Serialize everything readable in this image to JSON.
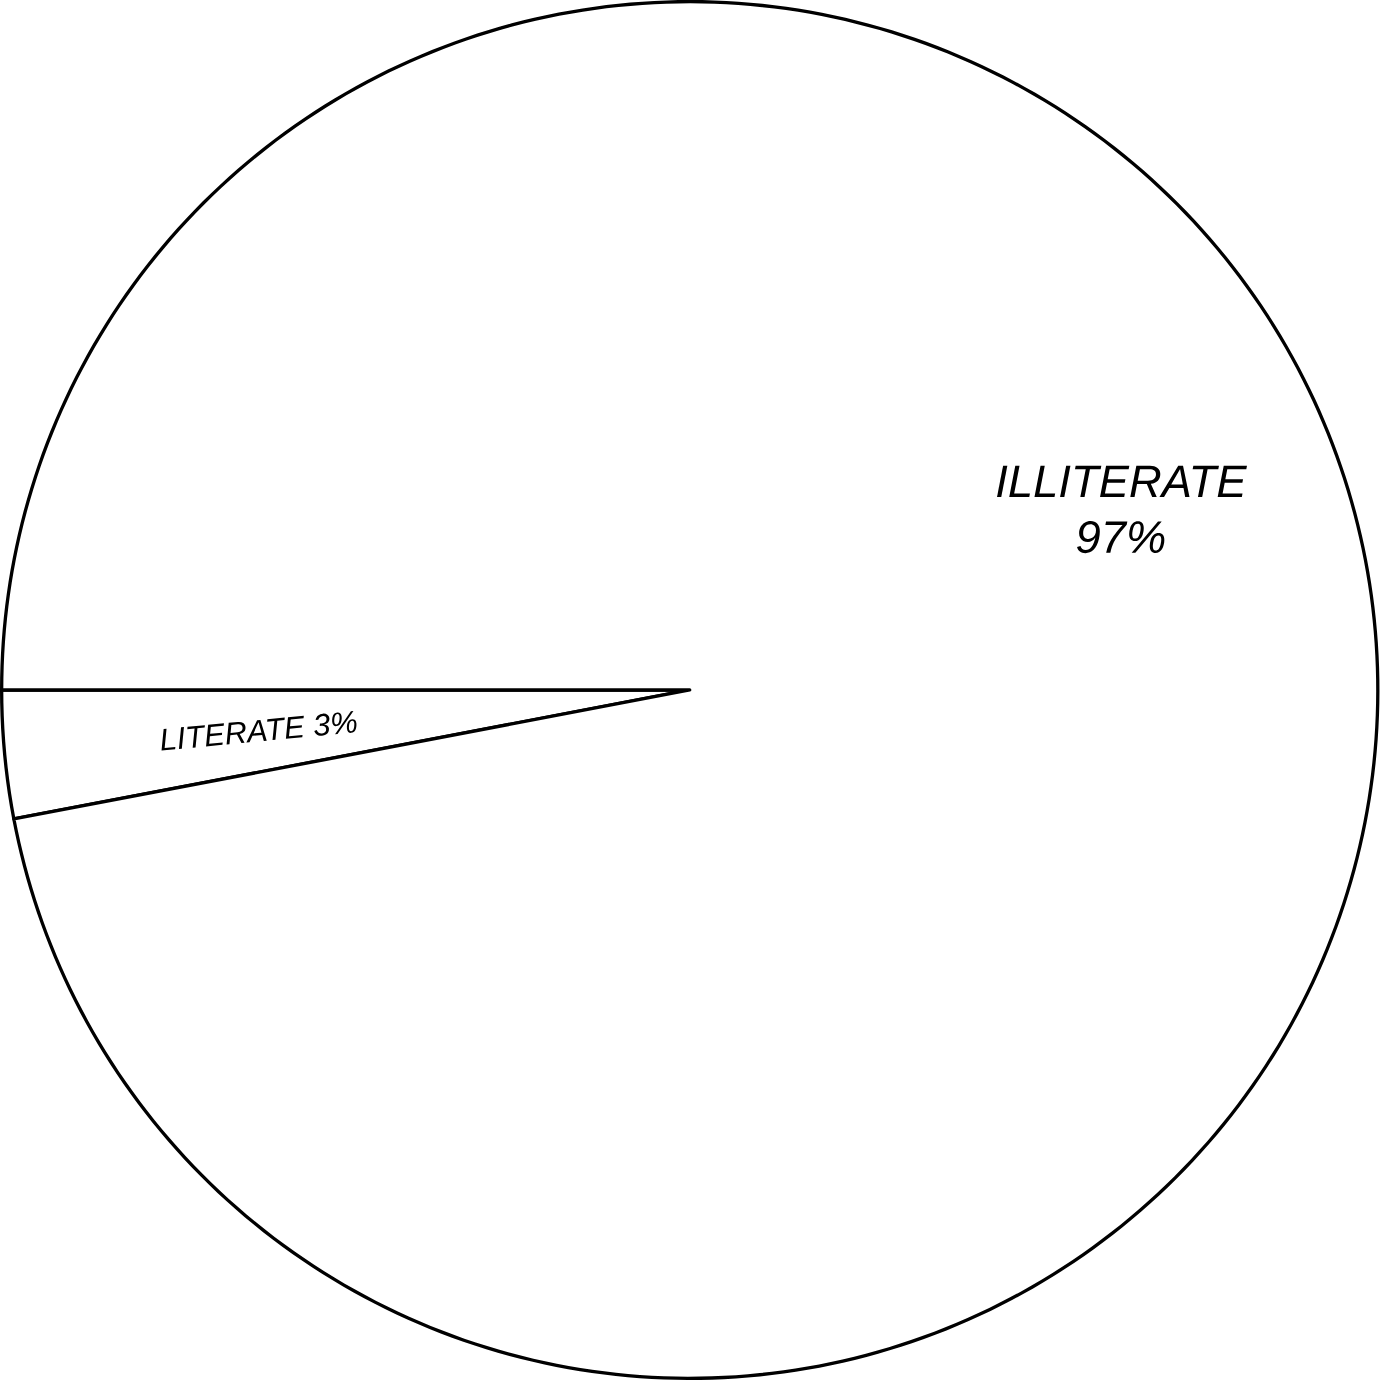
{
  "chart_data": {
    "type": "pie",
    "categories": [
      "LITERATE",
      "ILLITERATE"
    ],
    "values": [
      3,
      97
    ],
    "value_labels": [
      "3%",
      "97%"
    ],
    "colors": [
      "#ffffff",
      "#ffffff"
    ]
  }
}
